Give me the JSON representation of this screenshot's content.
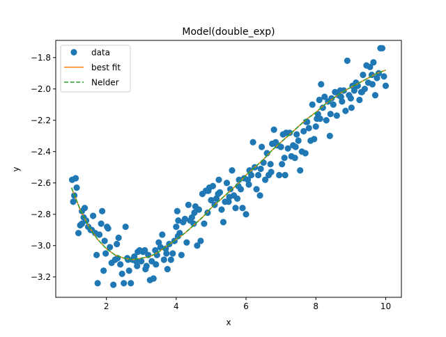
{
  "chart_data": {
    "type": "scatter",
    "title": "Model(double_exp)",
    "xlabel": "x",
    "ylabel": "y",
    "xlim": [
      0.55,
      10.45
    ],
    "ylim": [
      -3.33,
      -1.69
    ],
    "grid": false,
    "legend_position": "top-left",
    "x_ticks": [
      2,
      4,
      6,
      8,
      10
    ],
    "x_tick_labels": [
      "2",
      "4",
      "6",
      "8",
      "10"
    ],
    "y_ticks": [
      -3.2,
      -3.0,
      -2.8,
      -2.6,
      -2.4,
      -2.2,
      -2.0,
      -1.8
    ],
    "y_tick_labels": [
      "−3.2",
      "−3.0",
      "−2.8",
      "−2.6",
      "−2.4",
      "−2.2",
      "−2.0",
      "−1.8"
    ],
    "series": [
      {
        "name": "data",
        "kind": "scatter",
        "color": "#1f77b4",
        "points": [
          [
            1.02,
            -2.58
          ],
          [
            1.05,
            -2.72
          ],
          [
            1.08,
            -2.68
          ],
          [
            1.12,
            -2.57
          ],
          [
            1.15,
            -2.63
          ],
          [
            1.2,
            -2.92
          ],
          [
            1.25,
            -2.87
          ],
          [
            1.3,
            -2.86
          ],
          [
            1.35,
            -2.82
          ],
          [
            1.38,
            -2.76
          ],
          [
            1.42,
            -2.84
          ],
          [
            1.48,
            -2.88
          ],
          [
            1.55,
            -2.9
          ],
          [
            1.62,
            -2.81
          ],
          [
            1.68,
            -2.92
          ],
          [
            1.72,
            -3.06
          ],
          [
            1.75,
            -3.24
          ],
          [
            1.8,
            -2.93
          ],
          [
            1.85,
            -2.86
          ],
          [
            1.88,
            -2.78
          ],
          [
            1.92,
            -3.16
          ],
          [
            1.98,
            -3.05
          ],
          [
            2.02,
            -2.88
          ],
          [
            2.05,
            -2.89
          ],
          [
            2.1,
            -3.01
          ],
          [
            2.15,
            -3.11
          ],
          [
            2.2,
            -3.25
          ],
          [
            2.25,
            -3.09
          ],
          [
            2.3,
            -2.99
          ],
          [
            2.35,
            -2.95
          ],
          [
            2.4,
            -3.12
          ],
          [
            2.45,
            -3.18
          ],
          [
            2.5,
            -3.24
          ],
          [
            2.55,
            -2.88
          ],
          [
            2.6,
            -3.08
          ],
          [
            2.65,
            -3.16
          ],
          [
            2.7,
            -3.24
          ],
          [
            2.75,
            -3.09
          ],
          [
            2.8,
            -3.07
          ],
          [
            2.85,
            -3.1
          ],
          [
            2.9,
            -3.04
          ],
          [
            2.95,
            -3.03
          ],
          [
            3.0,
            -3.1
          ],
          [
            3.05,
            -3.04
          ],
          [
            3.1,
            -3.03
          ],
          [
            3.15,
            -3.13
          ],
          [
            3.2,
            -3.06
          ],
          [
            3.25,
            -3.22
          ],
          [
            3.3,
            -3.1
          ],
          [
            3.35,
            -3.21
          ],
          [
            3.4,
            -3.03
          ],
          [
            3.45,
            -3.06
          ],
          [
            3.5,
            -2.98
          ],
          [
            3.55,
            -3.01
          ],
          [
            3.6,
            -2.93
          ],
          [
            3.65,
            -3.09
          ],
          [
            3.7,
            -3.02
          ],
          [
            3.75,
            -3.15
          ],
          [
            3.8,
            -2.99
          ],
          [
            3.85,
            -3.09
          ],
          [
            3.9,
            -3.05
          ],
          [
            3.95,
            -2.97
          ],
          [
            4.0,
            -2.88
          ],
          [
            4.03,
            -2.78
          ],
          [
            4.06,
            -2.84
          ],
          [
            4.1,
            -2.92
          ],
          [
            4.15,
            -3.06
          ],
          [
            4.2,
            -2.85
          ],
          [
            4.25,
            -2.83
          ],
          [
            4.3,
            -2.98
          ],
          [
            4.35,
            -2.74
          ],
          [
            4.4,
            -2.84
          ],
          [
            4.45,
            -2.82
          ],
          [
            4.5,
            -2.86
          ],
          [
            4.55,
            -2.75
          ],
          [
            4.6,
            -3.0
          ],
          [
            4.65,
            -2.77
          ],
          [
            4.7,
            -2.97
          ],
          [
            4.75,
            -2.67
          ],
          [
            4.8,
            -2.86
          ],
          [
            4.85,
            -2.65
          ],
          [
            4.9,
            -2.79
          ],
          [
            4.95,
            -2.63
          ],
          [
            5.0,
            -2.71
          ],
          [
            5.05,
            -2.62
          ],
          [
            5.1,
            -2.74
          ],
          [
            5.15,
            -2.7
          ],
          [
            5.2,
            -2.67
          ],
          [
            5.25,
            -2.66
          ],
          [
            5.3,
            -2.77
          ],
          [
            5.35,
            -2.85
          ],
          [
            5.4,
            -2.72
          ],
          [
            5.45,
            -2.6
          ],
          [
            5.5,
            -2.72
          ],
          [
            5.55,
            -2.64
          ],
          [
            5.6,
            -2.52
          ],
          [
            5.65,
            -2.68
          ],
          [
            5.7,
            -2.76
          ],
          [
            5.75,
            -2.7
          ],
          [
            5.8,
            -2.58
          ],
          [
            5.85,
            -2.64
          ],
          [
            5.9,
            -2.76
          ],
          [
            5.95,
            -2.57
          ],
          [
            6.0,
            -2.8
          ],
          [
            6.05,
            -2.58
          ],
          [
            6.1,
            -2.52
          ],
          [
            6.15,
            -2.55
          ],
          [
            6.2,
            -2.34
          ],
          [
            6.25,
            -2.5
          ],
          [
            6.3,
            -2.64
          ],
          [
            6.35,
            -2.55
          ],
          [
            6.4,
            -2.68
          ],
          [
            6.45,
            -2.37
          ],
          [
            6.5,
            -2.47
          ],
          [
            6.55,
            -2.58
          ],
          [
            6.6,
            -2.41
          ],
          [
            6.65,
            -2.55
          ],
          [
            6.7,
            -2.48
          ],
          [
            6.75,
            -2.35
          ],
          [
            6.8,
            -2.26
          ],
          [
            6.85,
            -2.34
          ],
          [
            6.9,
            -2.36
          ],
          [
            6.95,
            -2.55
          ],
          [
            7.0,
            -2.37
          ],
          [
            7.03,
            -2.48
          ],
          [
            7.06,
            -2.29
          ],
          [
            7.1,
            -2.44
          ],
          [
            7.15,
            -2.28
          ],
          [
            7.2,
            -2.38
          ],
          [
            7.25,
            -2.28
          ],
          [
            7.3,
            -2.43
          ],
          [
            7.35,
            -2.36
          ],
          [
            7.4,
            -2.44
          ],
          [
            7.45,
            -2.29
          ],
          [
            7.5,
            -2.33
          ],
          [
            7.55,
            -2.52
          ],
          [
            7.6,
            -2.4
          ],
          [
            7.65,
            -2.27
          ],
          [
            7.7,
            -2.41
          ],
          [
            7.75,
            -2.21
          ],
          [
            7.8,
            -2.25
          ],
          [
            7.85,
            -2.33
          ],
          [
            7.9,
            -2.1
          ],
          [
            7.95,
            -2.32
          ],
          [
            8.0,
            -2.24
          ],
          [
            8.03,
            -2.19
          ],
          [
            8.06,
            -2.16
          ],
          [
            8.1,
            -2.07
          ],
          [
            8.15,
            -1.97
          ],
          [
            8.2,
            -2.12
          ],
          [
            8.25,
            -2.05
          ],
          [
            8.3,
            -2.2
          ],
          [
            8.35,
            -2.08
          ],
          [
            8.4,
            -2.3
          ],
          [
            8.45,
            -2.06
          ],
          [
            8.5,
            -2.1
          ],
          [
            8.55,
            -2.02
          ],
          [
            8.6,
            -2.17
          ],
          [
            8.65,
            -2.04
          ],
          [
            8.7,
            -2.01
          ],
          [
            8.75,
            -2.08
          ],
          [
            8.8,
            -2.01
          ],
          [
            8.85,
            -2.14
          ],
          [
            8.9,
            -1.82
          ],
          [
            8.95,
            -2.04
          ],
          [
            9.0,
            -2.06
          ],
          [
            9.05,
            -1.98
          ],
          [
            9.1,
            -2.01
          ],
          [
            9.15,
            -1.96
          ],
          [
            9.2,
            -1.98
          ],
          [
            9.25,
            -2.07
          ],
          [
            9.3,
            -2.02
          ],
          [
            9.35,
            -1.91
          ],
          [
            9.4,
            -2.0
          ],
          [
            9.45,
            -1.85
          ],
          [
            9.5,
            -1.96
          ],
          [
            9.55,
            -1.86
          ],
          [
            9.6,
            -1.91
          ],
          [
            9.65,
            -1.83
          ],
          [
            9.7,
            -2.04
          ],
          [
            9.75,
            -1.93
          ],
          [
            9.8,
            -1.9
          ],
          [
            9.85,
            -1.74
          ],
          [
            9.9,
            -1.74
          ],
          [
            9.95,
            -1.92
          ],
          [
            10.0,
            -1.98
          ],
          [
            1.3,
            -2.78
          ],
          [
            1.58,
            -2.9
          ],
          [
            1.95,
            -2.97
          ],
          [
            2.32,
            -3.08
          ],
          [
            2.62,
            -3.09
          ],
          [
            2.88,
            -3.13
          ],
          [
            3.12,
            -3.15
          ],
          [
            3.42,
            -3.12
          ],
          [
            3.72,
            -3.05
          ],
          [
            4.05,
            -2.94
          ],
          [
            4.52,
            -2.79
          ],
          [
            4.92,
            -2.65
          ],
          [
            5.22,
            -2.58
          ],
          [
            5.52,
            -2.69
          ],
          [
            5.78,
            -2.62
          ],
          [
            6.08,
            -2.61
          ],
          [
            6.42,
            -2.51
          ],
          [
            6.72,
            -2.53
          ],
          [
            7.12,
            -2.55
          ],
          [
            7.42,
            -2.37
          ],
          [
            7.72,
            -2.21
          ],
          [
            8.12,
            -2.19
          ],
          [
            8.42,
            -2.16
          ],
          [
            8.72,
            -2.05
          ],
          [
            9.02,
            -2.12
          ],
          [
            9.32,
            -2.02
          ],
          [
            9.62,
            -1.97
          ]
        ]
      },
      {
        "name": "best fit",
        "kind": "line",
        "color": "#ff7f0e",
        "dash": "solid",
        "points": [
          [
            1.0,
            -2.63
          ],
          [
            1.25,
            -2.77
          ],
          [
            1.5,
            -2.88
          ],
          [
            1.75,
            -2.96
          ],
          [
            2.0,
            -3.02
          ],
          [
            2.25,
            -3.06
          ],
          [
            2.5,
            -3.08
          ],
          [
            2.75,
            -3.09
          ],
          [
            3.0,
            -3.08
          ],
          [
            3.25,
            -3.07
          ],
          [
            3.5,
            -3.04
          ],
          [
            3.75,
            -3.0
          ],
          [
            4.0,
            -2.96
          ],
          [
            4.25,
            -2.92
          ],
          [
            4.5,
            -2.87
          ],
          [
            4.75,
            -2.82
          ],
          [
            5.0,
            -2.76
          ],
          [
            5.25,
            -2.71
          ],
          [
            5.5,
            -2.66
          ],
          [
            5.75,
            -2.61
          ],
          [
            6.0,
            -2.55
          ],
          [
            6.25,
            -2.5
          ],
          [
            6.5,
            -2.45
          ],
          [
            6.75,
            -2.39
          ],
          [
            7.0,
            -2.34
          ],
          [
            7.25,
            -2.29
          ],
          [
            7.5,
            -2.24
          ],
          [
            7.75,
            -2.19
          ],
          [
            8.0,
            -2.15
          ],
          [
            8.25,
            -2.1
          ],
          [
            8.5,
            -2.06
          ],
          [
            8.75,
            -2.02
          ],
          [
            9.0,
            -1.99
          ],
          [
            9.25,
            -1.96
          ],
          [
            9.5,
            -1.93
          ],
          [
            9.75,
            -1.9
          ],
          [
            10.0,
            -1.88
          ]
        ]
      },
      {
        "name": "Nelder",
        "kind": "line",
        "color": "#2ca02c",
        "dash": "dashed",
        "points": [
          [
            1.0,
            -2.63
          ],
          [
            1.25,
            -2.77
          ],
          [
            1.5,
            -2.88
          ],
          [
            1.75,
            -2.96
          ],
          [
            2.0,
            -3.02
          ],
          [
            2.25,
            -3.06
          ],
          [
            2.5,
            -3.08
          ],
          [
            2.75,
            -3.09
          ],
          [
            3.0,
            -3.08
          ],
          [
            3.25,
            -3.07
          ],
          [
            3.5,
            -3.04
          ],
          [
            3.75,
            -3.0
          ],
          [
            4.0,
            -2.96
          ],
          [
            4.25,
            -2.92
          ],
          [
            4.5,
            -2.87
          ],
          [
            4.75,
            -2.82
          ],
          [
            5.0,
            -2.76
          ],
          [
            5.25,
            -2.71
          ],
          [
            5.5,
            -2.66
          ],
          [
            5.75,
            -2.61
          ],
          [
            6.0,
            -2.55
          ],
          [
            6.25,
            -2.5
          ],
          [
            6.5,
            -2.45
          ],
          [
            6.75,
            -2.39
          ],
          [
            7.0,
            -2.34
          ],
          [
            7.25,
            -2.29
          ],
          [
            7.5,
            -2.24
          ],
          [
            7.75,
            -2.19
          ],
          [
            8.0,
            -2.15
          ],
          [
            8.25,
            -2.1
          ],
          [
            8.5,
            -2.06
          ],
          [
            8.75,
            -2.02
          ],
          [
            9.0,
            -1.99
          ],
          [
            9.25,
            -1.96
          ],
          [
            9.5,
            -1.93
          ],
          [
            9.75,
            -1.9
          ],
          [
            10.0,
            -1.88
          ]
        ]
      }
    ]
  }
}
